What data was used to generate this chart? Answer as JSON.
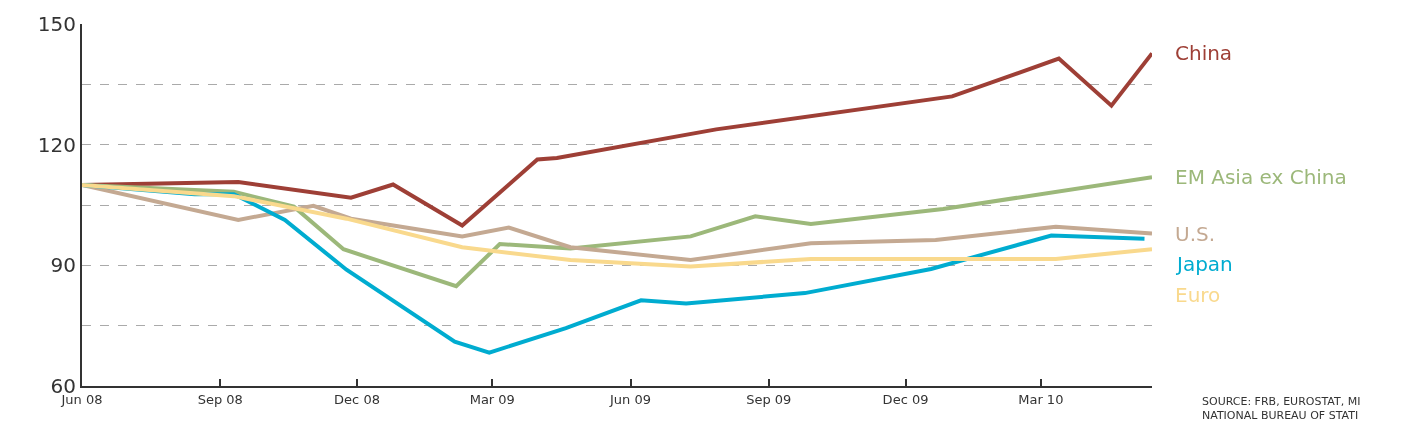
{
  "chart_data": {
    "type": "line",
    "xlim": [
      "2008-06-01",
      "2010-05-14"
    ],
    "xticks": [
      {
        "value": "2008-06-01",
        "label": "Jun 08"
      },
      {
        "value": "2008-09-01",
        "label": "Sep 08"
      },
      {
        "value": "2008-12-01",
        "label": "Dec 08"
      },
      {
        "value": "2009-03-01",
        "label": "Mar 09"
      },
      {
        "value": "2009-06-01",
        "label": "Jun 09"
      },
      {
        "value": "2009-09-01",
        "label": "Sep 09"
      },
      {
        "value": "2009-12-01",
        "label": "Dec 09"
      },
      {
        "value": "2010-03-01",
        "label": "Mar 10"
      }
    ],
    "ylim": [
      60,
      150
    ],
    "yticks": [
      60,
      {
        "value": 75,
        "label": null
      },
      90,
      {
        "value": 105,
        "label": null
      },
      120,
      {
        "value": 135,
        "label": null
      },
      150
    ],
    "grid": "y",
    "legend": false,
    "marker": "none",
    "line_style": "solid",
    "series": [
      {
        "name": "China",
        "color": "#9e3f36",
        "x": [
          "2008-06-01",
          "2008-09-13",
          "2008-11-27",
          "2008-12-25",
          "2009-02-09",
          "2009-03-31",
          "2009-04-13",
          "2009-07-28",
          "2010-01-01",
          "2010-03-13",
          "2010-04-17",
          "2010-05-14"
        ],
        "values": [
          110,
          110.7,
          106.8,
          110.1,
          99.9,
          116.3,
          116.7,
          123.8,
          132,
          141.4,
          129.7,
          142.7
        ]
      },
      {
        "name": "EM Asia ex China",
        "color": "#9cb87a",
        "x": [
          "2008-06-01",
          "2008-09-10",
          "2008-10-20",
          "2008-11-22",
          "2009-02-05",
          "2009-03-06",
          "2009-04-22",
          "2009-07-11",
          "2009-08-23",
          "2009-09-29",
          "2009-12-26",
          "2010-05-14"
        ],
        "values": [
          110,
          108.3,
          104.6,
          94,
          84.8,
          95.3,
          94.2,
          97.2,
          102.2,
          100.3,
          104,
          111.9
        ]
      },
      {
        "name": "U.S.",
        "color": "#c4a992",
        "x": [
          "2008-06-01",
          "2008-09-13",
          "2008-11-02",
          "2008-11-27",
          "2009-02-09",
          "2009-03-12",
          "2009-04-22",
          "2009-07-11",
          "2009-09-29",
          "2009-12-21",
          "2010-03-11",
          "2010-05-14"
        ],
        "values": [
          110,
          101.3,
          104.8,
          101.6,
          97.2,
          99.4,
          94.5,
          91.3,
          95.5,
          96.3,
          99.6,
          97.9
        ]
      },
      {
        "name": "Japan",
        "color": "#00acd0",
        "x": [
          "2008-06-01",
          "2008-08-15",
          "2008-09-10",
          "2008-10-14",
          "2008-11-24",
          "2009-02-04",
          "2009-02-27",
          "2009-04-19",
          "2009-06-08",
          "2009-07-08",
          "2009-09-25",
          "2009-12-18",
          "2010-03-08",
          "2010-05-09"
        ],
        "values": [
          110,
          107.7,
          107.7,
          101.3,
          88.9,
          71,
          68.3,
          74.4,
          81.3,
          80.5,
          83.1,
          89.1,
          97.4,
          96.6
        ]
      },
      {
        "name": "Euro",
        "color": "#f9d98d",
        "x": [
          "2008-06-01",
          "2008-09-10",
          "2008-11-24",
          "2009-02-09",
          "2009-04-22",
          "2009-07-11",
          "2009-09-29",
          "2010-03-11",
          "2010-05-14"
        ],
        "values": [
          110,
          107.2,
          101.6,
          94.5,
          91.3,
          89.7,
          91.6,
          91.6,
          94
        ]
      }
    ],
    "annotations": [
      "SOURCE: FRB, EUROSTAT, MI\nNATIONAL BUREAU OF STATI"
    ]
  }
}
